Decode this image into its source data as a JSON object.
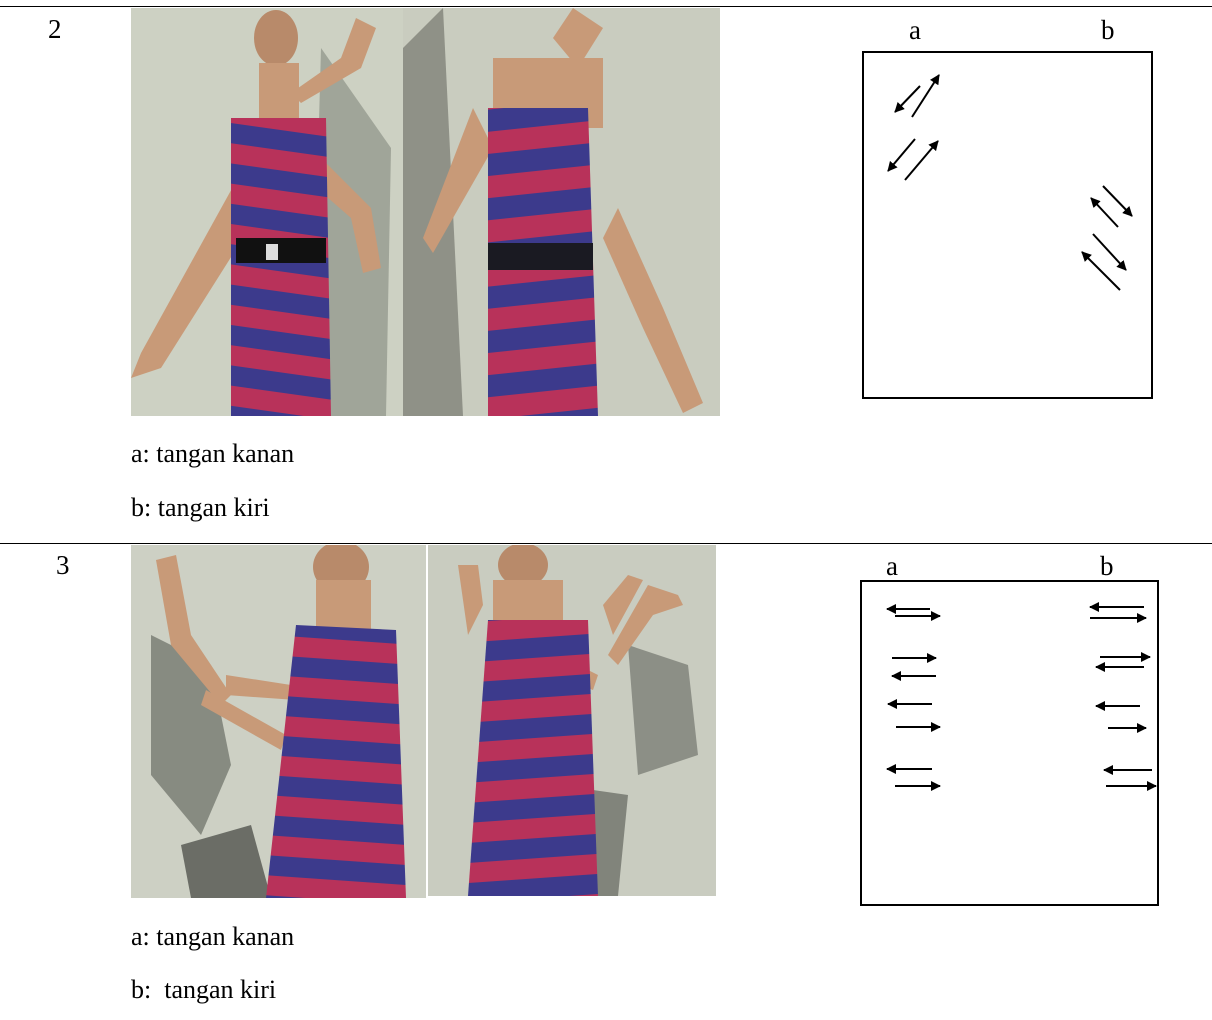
{
  "rows": [
    {
      "number": "2",
      "caption_a": "a: tangan kanan",
      "caption_b": "b: tangan kiri",
      "diagram": {
        "label_a": "a",
        "label_b": "b"
      }
    },
    {
      "number": "3",
      "caption_a": "a: tangan kanan",
      "caption_b": "b:  tangan kiri",
      "diagram": {
        "label_a": "a",
        "label_b": "b"
      }
    }
  ],
  "colors": {
    "wall": "#cdd1c3",
    "dress_red": "#b8325a",
    "dress_blue": "#3c3a8c",
    "skin": "#c89a78",
    "shadow": "#5a5c55"
  }
}
